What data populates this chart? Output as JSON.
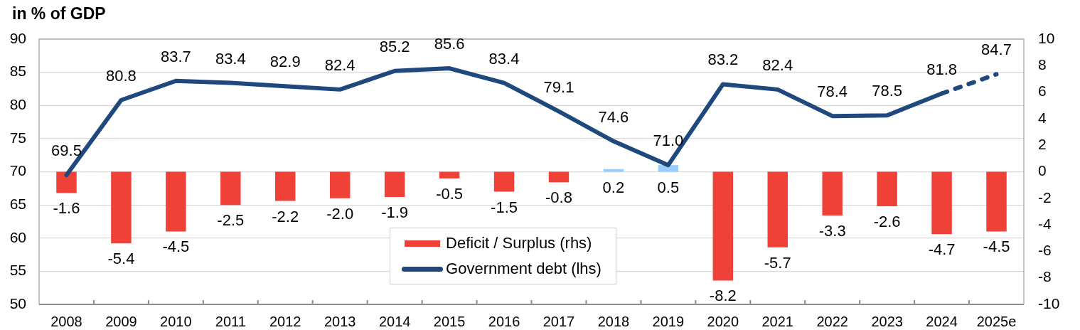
{
  "chart_data": {
    "type": "bar",
    "ylabel": "in % of GDP",
    "categories": [
      "2008",
      "2009",
      "2010",
      "2011",
      "2012",
      "2013",
      "2014",
      "2015",
      "2016",
      "2017",
      "2018",
      "2019",
      "2020",
      "2021",
      "2022",
      "2023",
      "2024",
      "2025e"
    ],
    "series": [
      {
        "name": "Deficit / Surplus (rhs)",
        "axis": "y2",
        "color": "#f04139",
        "colors": [
          "#f04139",
          "#f04139",
          "#f04139",
          "#f04139",
          "#f04139",
          "#f04139",
          "#f04139",
          "#f04139",
          "#f04139",
          "#f04139",
          "#99ccff",
          "#99ccff",
          "#f04139",
          "#f04139",
          "#f04139",
          "#f04139",
          "#f04139",
          "#f04139"
        ],
        "values": [
          -1.6,
          -5.4,
          -4.5,
          -2.5,
          -2.2,
          -2.0,
          -1.9,
          -0.5,
          -1.5,
          -0.8,
          0.2,
          0.5,
          -8.2,
          -5.7,
          -3.3,
          -2.6,
          -4.7,
          -4.5
        ],
        "value_labels": [
          "-1.6",
          "-5.4",
          "-4.5",
          "-2.5",
          "-2.2",
          "-2.0",
          "-1.9",
          "-0.5",
          "-1.5",
          "-0.8",
          "0.2",
          "0.5",
          "-8.2",
          "-5.7",
          "-3.3",
          "-2.6",
          "-4.7",
          "-4.5"
        ]
      },
      {
        "name": "Government debt (lhs)",
        "type": "line",
        "color": "#1f497d",
        "values": [
          69.5,
          80.8,
          83.7,
          83.4,
          82.9,
          82.4,
          85.2,
          85.6,
          83.4,
          79.1,
          74.6,
          71.0,
          83.2,
          82.4,
          78.4,
          78.5,
          81.8,
          null
        ],
        "value_labels": [
          "69.5",
          "80.8",
          "83.7",
          "83.4",
          "82.9",
          "82.4",
          "85.2",
          "85.6",
          "83.4",
          "79.1",
          "74.6",
          "71.0",
          "83.2",
          "82.4",
          "78.4",
          "78.5",
          "81.8",
          null
        ]
      },
      {
        "type": "line",
        "color": "#1f497d",
        "line_style": "dashed",
        "values": [
          null,
          null,
          null,
          null,
          null,
          null,
          null,
          null,
          null,
          null,
          null,
          null,
          null,
          null,
          null,
          null,
          81.8,
          84.7
        ],
        "value_labels": [
          null,
          null,
          null,
          null,
          null,
          null,
          null,
          null,
          null,
          null,
          null,
          null,
          null,
          null,
          null,
          null,
          null,
          "84.7"
        ]
      }
    ],
    "ylim": [
      50,
      90
    ],
    "yticks": [
      50,
      55,
      60,
      65,
      70,
      75,
      80,
      85,
      90
    ],
    "y2lim": [
      -10,
      10
    ],
    "y2ticks": [
      -10,
      -8,
      -6,
      -4,
      -2,
      0,
      2,
      4,
      6,
      8,
      10
    ],
    "grid": "y",
    "legend": "bottom"
  }
}
